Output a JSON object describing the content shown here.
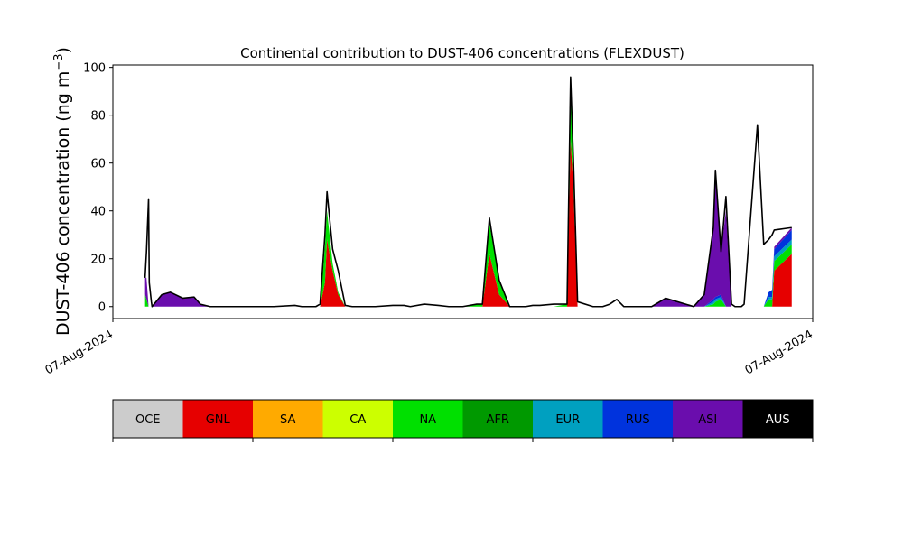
{
  "chart_data": {
    "type": "area",
    "title": "Continental contribution to DUST-406 concentrations (FLEXDUST)",
    "ylabel_main": "DUST-406 concentration (ng m",
    "ylabel_sup": "−3",
    "ylabel_close": ")",
    "ylim": [
      -5,
      101
    ],
    "yticks": [
      0,
      20,
      40,
      60,
      80,
      100
    ],
    "xlim": [
      0,
      100
    ],
    "xticks": [
      {
        "x": 0,
        "label": "07-Aug-2024"
      },
      {
        "x": 100,
        "label": "07-Aug-2024"
      }
    ],
    "grid": false,
    "stack_order": [
      "GNL",
      "NA",
      "EUR",
      "RUS",
      "ASI"
    ],
    "x": [
      4.6,
      4.8,
      5.1,
      5.2,
      5.5,
      5.6,
      7.0,
      8.2,
      10.0,
      11.6,
      12.5,
      13.9,
      14.7,
      16.3,
      18.5,
      20.0,
      23.0,
      26.0,
      27.0,
      28.0,
      29.0,
      29.6,
      30.3,
      30.6,
      31.4,
      32.2,
      33.2,
      34.2,
      35.2,
      36.2,
      37.5,
      40.0,
      41.6,
      42.5,
      44.5,
      46.5,
      48.0,
      50.0,
      52.0,
      52.8,
      53.8,
      55.2,
      56.7,
      58.0,
      59.0,
      60.0,
      61.0,
      63.0,
      64.9,
      65.4,
      65.8,
      66.4,
      68.6,
      70.0,
      71.0,
      72.0,
      73.0,
      74.5,
      75.3,
      76.0,
      77.0,
      79.0,
      83.0,
      84.5,
      85.8,
      86.1,
      86.9,
      87.6,
      88.4,
      88.9,
      89.4,
      89.8,
      90.2,
      92.1,
      93.0,
      93.7,
      94.2,
      94.5,
      97.0
    ],
    "series": [
      {
        "name": "GNL",
        "color": "#e60000",
        "values": [
          0,
          0,
          0,
          0,
          0,
          0,
          0,
          0,
          0,
          0,
          0,
          0,
          0,
          0,
          0,
          0,
          0,
          0,
          0,
          0,
          0,
          0,
          10,
          28,
          15,
          5,
          0,
          0,
          0,
          0,
          0,
          0,
          0,
          0,
          0,
          0,
          0,
          0,
          0,
          0,
          22,
          5,
          0,
          0,
          0,
          0,
          0,
          0,
          0,
          70,
          50,
          0,
          0,
          0,
          0,
          0,
          0,
          0,
          0,
          0,
          0,
          0,
          0,
          0,
          0,
          0,
          0,
          0,
          0,
          0,
          0,
          0,
          0,
          0,
          0,
          0,
          0,
          15,
          22
        ]
      },
      {
        "name": "NA",
        "color": "#00e000",
        "values": [
          5,
          3,
          0,
          0,
          0,
          0,
          0,
          0,
          0,
          0,
          0,
          0,
          0,
          0,
          0,
          0,
          0,
          0,
          0,
          0,
          0,
          0,
          15,
          12,
          3,
          1,
          0,
          0,
          0,
          0,
          0,
          0,
          0,
          0,
          0,
          0,
          0,
          0,
          1,
          1,
          13,
          6,
          0,
          0,
          0,
          0,
          0,
          0,
          1,
          18,
          10,
          0,
          0,
          0,
          0,
          0,
          0,
          0,
          0,
          0,
          0,
          0,
          0,
          0,
          1,
          2,
          3,
          0,
          0,
          0,
          0,
          0,
          0,
          0,
          0,
          3,
          3,
          4,
          4
        ]
      },
      {
        "name": "EUR",
        "color": "#00a0c0",
        "values": [
          0,
          0,
          0,
          0,
          0,
          0,
          0,
          0,
          0,
          0,
          0,
          0,
          0,
          0,
          0,
          0,
          0,
          0,
          0,
          0,
          0,
          0,
          0,
          0,
          0,
          0,
          0,
          0,
          0,
          0,
          0,
          0,
          0,
          0,
          0,
          0,
          0,
          0,
          0,
          0,
          0,
          0,
          0,
          0,
          0,
          0,
          0,
          0,
          0,
          0,
          0,
          0,
          0,
          0,
          0,
          0,
          0,
          0,
          0,
          0,
          0,
          0,
          0,
          0,
          1,
          1,
          1,
          0,
          0,
          0,
          0,
          0,
          0,
          0,
          0,
          1,
          1,
          2,
          2
        ]
      },
      {
        "name": "RUS",
        "color": "#0033dd",
        "values": [
          0,
          0,
          0,
          0,
          0,
          0,
          0,
          0,
          0,
          0,
          0,
          0,
          0,
          0,
          0,
          0,
          0,
          0,
          0,
          0,
          0,
          0,
          0,
          0,
          0,
          0,
          0,
          0,
          0,
          0,
          0,
          0,
          0,
          0,
          0,
          0,
          0,
          0,
          0,
          0,
          0,
          0,
          0,
          0,
          0,
          0,
          0,
          0,
          0,
          0,
          0,
          0,
          0,
          0,
          0,
          0,
          0,
          0,
          0,
          0,
          0,
          0,
          0,
          0,
          1,
          1,
          1,
          0,
          0,
          0,
          0,
          0,
          0,
          0,
          0,
          2,
          3,
          3,
          4
        ]
      },
      {
        "name": "ASI",
        "color": "#6a0dad",
        "values": [
          7,
          9,
          0,
          0,
          0,
          0,
          5,
          6,
          3.5,
          4,
          1,
          0,
          0,
          0,
          0,
          0,
          0,
          0,
          0,
          0,
          0,
          0,
          0,
          0,
          0,
          0,
          0,
          0,
          0,
          0,
          0,
          0,
          0,
          0,
          0,
          0,
          0,
          0,
          0,
          0,
          0,
          0,
          0,
          0,
          0,
          0,
          0,
          0,
          0,
          0,
          0,
          0,
          0,
          0,
          0,
          0,
          0,
          0,
          0,
          0,
          0,
          3.5,
          0,
          5,
          30,
          52,
          20,
          40,
          0,
          0,
          0,
          0,
          0,
          0,
          0,
          0,
          0,
          1,
          1
        ]
      }
    ],
    "total": [
      12,
      23,
      45,
      10,
      2,
      0,
      5,
      6,
      3.5,
      4,
      1,
      0,
      0,
      0,
      0,
      0,
      0,
      0.5,
      0,
      0,
      0,
      1,
      30,
      48,
      24,
      15,
      0.5,
      0,
      0,
      0,
      0,
      0.5,
      0.5,
      0,
      1,
      0.5,
      0,
      0,
      1,
      1,
      37,
      11,
      0,
      0,
      0,
      0.5,
      0.5,
      1,
      1,
      96,
      62,
      2,
      0,
      0,
      1,
      3,
      0,
      0,
      0,
      0,
      0,
      3.5,
      0,
      5,
      33,
      57,
      23,
      46,
      1,
      0,
      0,
      0,
      1,
      76,
      26,
      28,
      30,
      32,
      33
    ]
  },
  "colorbar": {
    "items": [
      {
        "label": "OCE",
        "color": "#cccccc"
      },
      {
        "label": "GNL",
        "color": "#e60000"
      },
      {
        "label": "SA",
        "color": "#ffaa00"
      },
      {
        "label": "CA",
        "color": "#ccff00"
      },
      {
        "label": "NA",
        "color": "#00e000"
      },
      {
        "label": "AFR",
        "color": "#009900"
      },
      {
        "label": "EUR",
        "color": "#00a0c0"
      },
      {
        "label": "RUS",
        "color": "#0033dd"
      },
      {
        "label": "ASI",
        "color": "#6a0dad"
      },
      {
        "label": "AUS",
        "color": "#000000"
      }
    ]
  }
}
